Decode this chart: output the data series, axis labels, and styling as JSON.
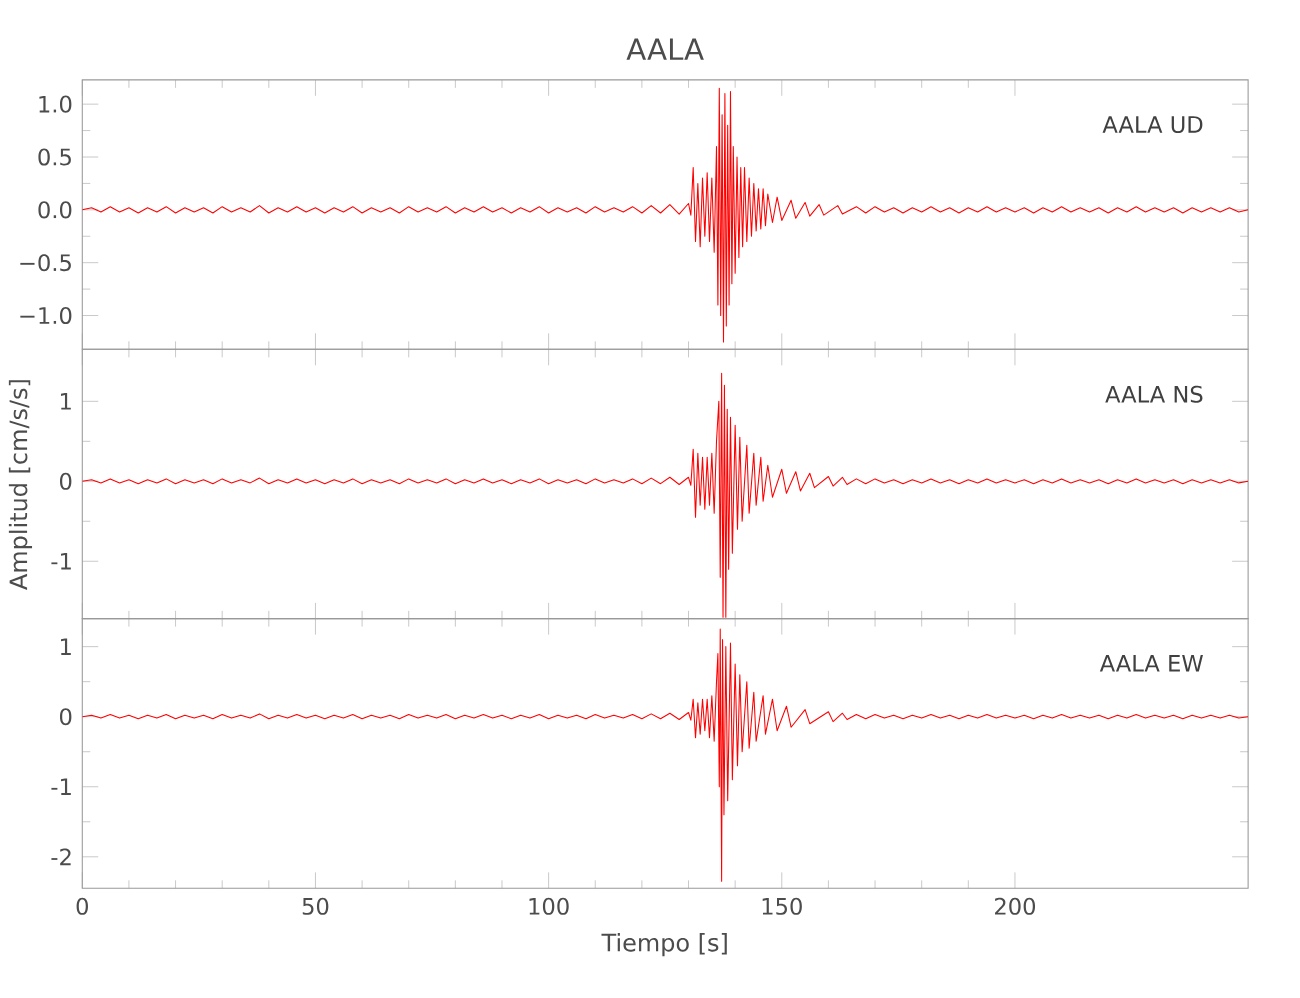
{
  "chart_data": [
    {
      "type": "line",
      "title": "AALA",
      "annotations": [
        "AALA UD"
      ],
      "xlim": [
        0,
        250
      ],
      "xticks": [
        0,
        50,
        100,
        150,
        200
      ],
      "ylim": [
        -1.32,
        1.23
      ],
      "yticks": [
        {
          "value": -1.0,
          "label": "−1.0"
        },
        {
          "value": -0.5,
          "label": "−0.5"
        },
        {
          "value": 0,
          "label": "0.0"
        },
        {
          "value": 0.5,
          "label": "0.5"
        },
        {
          "value": 1.0,
          "label": "1.0"
        }
      ],
      "tick_labels": "y",
      "series": [
        {
          "color": "#ff0000",
          "x": [
            0,
            2,
            4,
            6,
            8,
            10,
            12,
            14,
            16,
            18,
            20,
            22,
            24,
            26,
            28,
            30,
            32,
            34,
            36,
            38,
            40,
            42,
            44,
            46,
            48,
            50,
            52,
            54,
            56,
            58,
            60,
            62,
            64,
            66,
            68,
            70,
            72,
            74,
            76,
            78,
            80,
            82,
            84,
            86,
            88,
            90,
            92,
            94,
            96,
            98,
            100,
            102,
            104,
            106,
            108,
            110,
            112,
            114,
            116,
            118,
            120,
            122,
            124,
            126,
            128,
            130,
            130.5,
            131,
            131.5,
            132,
            132.5,
            133,
            133.5,
            134,
            134.5,
            135,
            135.5,
            136,
            136.3,
            136.6,
            136.9,
            137.2,
            137.5,
            137.8,
            138.1,
            138.4,
            138.7,
            139,
            139.3,
            139.6,
            140,
            140.4,
            140.8,
            141.2,
            141.6,
            142,
            142.5,
            143,
            143.5,
            144,
            144.5,
            145,
            145.5,
            146,
            146.5,
            147,
            148,
            149,
            150,
            152,
            153,
            155,
            156,
            158,
            159,
            162,
            163,
            166,
            168,
            170,
            172,
            174,
            176,
            178,
            180,
            182,
            184,
            186,
            188,
            190,
            192,
            194,
            196,
            198,
            200,
            202,
            204,
            206,
            208,
            210,
            212,
            214,
            216,
            218,
            220,
            222,
            224,
            226,
            228,
            230,
            232,
            234,
            236,
            238,
            240,
            242,
            244,
            246,
            248,
            250
          ],
          "values": [
            0,
            0.02,
            -0.02,
            0.03,
            -0.02,
            0.02,
            -0.03,
            0.02,
            -0.02,
            0.03,
            -0.03,
            0.02,
            -0.02,
            0.02,
            -0.03,
            0.03,
            -0.02,
            0.02,
            -0.02,
            0.04,
            -0.03,
            0.02,
            -0.02,
            0.03,
            -0.02,
            0.02,
            -0.03,
            0.02,
            -0.02,
            0.03,
            -0.03,
            0.02,
            -0.02,
            0.02,
            -0.03,
            0.03,
            -0.02,
            0.02,
            -0.02,
            0.03,
            -0.03,
            0.02,
            -0.02,
            0.03,
            -0.02,
            0.02,
            -0.03,
            0.02,
            -0.02,
            0.03,
            -0.03,
            0.02,
            -0.02,
            0.02,
            -0.03,
            0.03,
            -0.02,
            0.02,
            -0.02,
            0.03,
            -0.03,
            0.04,
            -0.03,
            0.05,
            -0.04,
            0.06,
            -0.05,
            0.4,
            -0.3,
            0.25,
            -0.35,
            0.3,
            -0.25,
            0.35,
            -0.3,
            0.3,
            -0.4,
            0.6,
            -0.9,
            1.15,
            -1.0,
            0.9,
            -1.25,
            1.1,
            -1.1,
            0.8,
            -0.9,
            1.12,
            -0.7,
            0.6,
            -0.6,
            0.5,
            -0.45,
            0.4,
            -0.35,
            0.4,
            -0.3,
            0.3,
            -0.25,
            0.25,
            -0.2,
            0.2,
            -0.18,
            0.2,
            -0.15,
            0.15,
            -0.12,
            0.12,
            -0.1,
            0.09,
            -0.08,
            0.07,
            -0.06,
            0.05,
            -0.05,
            0.04,
            -0.04,
            0.03,
            -0.03,
            0.03,
            -0.02,
            0.02,
            -0.03,
            0.02,
            -0.02,
            0.03,
            -0.02,
            0.02,
            -0.03,
            0.02,
            -0.02,
            0.03,
            -0.02,
            0.02,
            -0.02,
            0.02,
            -0.03,
            0.02,
            -0.02,
            0.03,
            -0.02,
            0.02,
            -0.02,
            0.02,
            -0.03,
            0.02,
            -0.02,
            0.03,
            -0.02,
            0.02,
            -0.02,
            0.02,
            -0.03,
            0.02,
            -0.02,
            0.02,
            -0.02,
            0.02,
            -0.02,
            0
          ]
        }
      ]
    },
    {
      "type": "line",
      "ylabel": "Amplitud [cm/s/s]",
      "annotations": [
        "AALA NS"
      ],
      "xlim": [
        0,
        250
      ],
      "xticks": [
        0,
        50,
        100,
        150,
        200
      ],
      "ylim": [
        -1.72,
        1.65
      ],
      "yticks": [
        -1,
        0,
        1
      ],
      "tick_labels": "y",
      "series": [
        {
          "color": "#ff0000",
          "x": [
            0,
            2,
            4,
            6,
            8,
            10,
            12,
            14,
            16,
            18,
            20,
            22,
            24,
            26,
            28,
            30,
            32,
            34,
            36,
            38,
            40,
            42,
            44,
            46,
            48,
            50,
            52,
            54,
            56,
            58,
            60,
            62,
            64,
            66,
            68,
            70,
            72,
            74,
            76,
            78,
            80,
            82,
            84,
            86,
            88,
            90,
            92,
            94,
            96,
            98,
            100,
            102,
            104,
            106,
            108,
            110,
            112,
            114,
            116,
            118,
            120,
            122,
            124,
            126,
            128,
            130,
            130.5,
            131,
            131.5,
            132,
            132.5,
            133,
            133.5,
            134,
            134.5,
            135,
            135.5,
            136,
            136.5,
            136.8,
            137.1,
            137.4,
            137.7,
            138,
            138.3,
            138.6,
            139,
            139.4,
            140,
            140.5,
            141,
            141.5,
            142.5,
            143,
            144,
            144.5,
            145.5,
            146,
            147,
            148,
            150,
            151,
            153,
            154,
            156,
            157,
            160,
            161,
            163,
            164,
            166,
            168,
            170,
            172,
            174,
            176,
            178,
            180,
            182,
            184,
            186,
            188,
            190,
            192,
            194,
            196,
            198,
            200,
            202,
            204,
            206,
            208,
            210,
            212,
            214,
            216,
            218,
            220,
            222,
            224,
            226,
            228,
            230,
            232,
            234,
            236,
            238,
            240,
            242,
            244,
            246,
            248,
            250
          ],
          "values": [
            0,
            0.02,
            -0.02,
            0.03,
            -0.02,
            0.02,
            -0.03,
            0.02,
            -0.02,
            0.03,
            -0.03,
            0.02,
            -0.02,
            0.02,
            -0.03,
            0.03,
            -0.02,
            0.02,
            -0.02,
            0.04,
            -0.03,
            0.02,
            -0.02,
            0.03,
            -0.02,
            0.02,
            -0.03,
            0.02,
            -0.02,
            0.03,
            -0.03,
            0.02,
            -0.02,
            0.02,
            -0.03,
            0.03,
            -0.02,
            0.02,
            -0.02,
            0.03,
            -0.03,
            0.02,
            -0.02,
            0.03,
            -0.02,
            0.02,
            -0.03,
            0.02,
            -0.02,
            0.03,
            -0.03,
            0.02,
            -0.02,
            0.02,
            -0.03,
            0.03,
            -0.02,
            0.02,
            -0.02,
            0.03,
            -0.03,
            0.04,
            -0.03,
            0.05,
            -0.04,
            0.05,
            -0.05,
            0.4,
            -0.45,
            0.35,
            -0.3,
            0.3,
            -0.35,
            0.3,
            -0.3,
            0.35,
            -0.4,
            0.5,
            1.0,
            -1.2,
            1.35,
            -1.7,
            1.2,
            -1.7,
            0.9,
            -1.1,
            0.8,
            -0.9,
            0.7,
            -0.6,
            0.55,
            -0.5,
            0.45,
            -0.4,
            0.35,
            -0.3,
            0.3,
            -0.25,
            0.2,
            -0.2,
            0.15,
            -0.15,
            0.12,
            -0.12,
            0.1,
            -0.08,
            0.06,
            -0.06,
            0.05,
            -0.04,
            0.03,
            -0.03,
            0.03,
            -0.02,
            0.02,
            -0.03,
            0.02,
            -0.02,
            0.03,
            -0.02,
            0.02,
            -0.03,
            0.02,
            -0.02,
            0.03,
            -0.02,
            0.02,
            -0.02,
            0.02,
            -0.03,
            0.02,
            -0.02,
            0.03,
            -0.02,
            0.02,
            -0.02,
            0.02,
            -0.03,
            0.02,
            -0.02,
            0.03,
            -0.02,
            0.02,
            -0.02,
            0.02,
            -0.03,
            0.02,
            -0.02,
            0.02,
            -0.02,
            0.02,
            -0.02,
            0
          ]
        }
      ]
    },
    {
      "type": "line",
      "xlabel": "Tiempo [s]",
      "annotations": [
        "AALA EW"
      ],
      "xlim": [
        0,
        250
      ],
      "xticks": [
        0,
        50,
        100,
        150,
        200
      ],
      "ylim": [
        -2.45,
        1.4
      ],
      "yticks": [
        -2,
        -1,
        0,
        1
      ],
      "series": [
        {
          "color": "#ff0000",
          "x": [
            0,
            2,
            4,
            6,
            8,
            10,
            12,
            14,
            16,
            18,
            20,
            22,
            24,
            26,
            28,
            30,
            32,
            34,
            36,
            38,
            40,
            42,
            44,
            46,
            48,
            50,
            52,
            54,
            56,
            58,
            60,
            62,
            64,
            66,
            68,
            70,
            72,
            74,
            76,
            78,
            80,
            82,
            84,
            86,
            88,
            90,
            92,
            94,
            96,
            98,
            100,
            102,
            104,
            106,
            108,
            110,
            112,
            114,
            116,
            118,
            120,
            122,
            124,
            126,
            128,
            130,
            130.5,
            131,
            131.5,
            132,
            132.5,
            133,
            133.5,
            134,
            134.5,
            135,
            135.5,
            136,
            136.3,
            136.6,
            136.8,
            137.1,
            137.3,
            137.6,
            138,
            138.4,
            139,
            139.4,
            140,
            140.5,
            141,
            141.5,
            142.5,
            143,
            144,
            144.5,
            146,
            146.5,
            148,
            149,
            151,
            152,
            155,
            156,
            160,
            161,
            163,
            164,
            166,
            168,
            170,
            172,
            174,
            176,
            178,
            180,
            182,
            184,
            186,
            188,
            190,
            192,
            194,
            196,
            198,
            200,
            202,
            204,
            206,
            208,
            210,
            212,
            214,
            216,
            218,
            220,
            222,
            224,
            226,
            228,
            230,
            232,
            234,
            236,
            238,
            240,
            242,
            244,
            246,
            248,
            250
          ],
          "values": [
            0,
            0.02,
            -0.02,
            0.03,
            -0.02,
            0.02,
            -0.03,
            0.02,
            -0.02,
            0.03,
            -0.03,
            0.02,
            -0.02,
            0.02,
            -0.03,
            0.03,
            -0.02,
            0.02,
            -0.02,
            0.04,
            -0.03,
            0.02,
            -0.02,
            0.03,
            -0.02,
            0.02,
            -0.03,
            0.02,
            -0.02,
            0.03,
            -0.03,
            0.02,
            -0.02,
            0.02,
            -0.03,
            0.03,
            -0.02,
            0.02,
            -0.02,
            0.03,
            -0.03,
            0.02,
            -0.02,
            0.03,
            -0.02,
            0.02,
            -0.03,
            0.02,
            -0.02,
            0.03,
            -0.03,
            0.02,
            -0.02,
            0.02,
            -0.03,
            0.03,
            -0.02,
            0.02,
            -0.02,
            0.03,
            -0.03,
            0.04,
            -0.03,
            0.05,
            -0.04,
            0.06,
            -0.05,
            0.25,
            -0.3,
            0.2,
            -0.25,
            0.25,
            -0.2,
            0.25,
            -0.3,
            0.3,
            -0.35,
            0.5,
            0.9,
            -1.0,
            1.25,
            -2.35,
            1.1,
            -1.4,
            1.0,
            -1.2,
            1.05,
            -0.9,
            0.75,
            -0.7,
            0.6,
            -0.5,
            0.5,
            -0.45,
            0.35,
            -0.35,
            0.3,
            -0.25,
            0.25,
            -0.2,
            0.15,
            -0.15,
            0.1,
            -0.1,
            0.07,
            -0.07,
            0.05,
            -0.04,
            0.03,
            -0.03,
            0.03,
            -0.02,
            0.02,
            -0.03,
            0.02,
            -0.02,
            0.03,
            -0.02,
            0.02,
            -0.03,
            0.02,
            -0.02,
            0.03,
            -0.02,
            0.02,
            -0.02,
            0.02,
            -0.03,
            0.02,
            -0.02,
            0.03,
            -0.02,
            0.02,
            -0.02,
            0.02,
            -0.03,
            0.02,
            -0.02,
            0.03,
            -0.02,
            0.02,
            -0.02,
            0.02,
            -0.03,
            0.02,
            -0.02,
            0.02,
            -0.02,
            0.02,
            -0.02,
            0
          ]
        }
      ]
    }
  ]
}
